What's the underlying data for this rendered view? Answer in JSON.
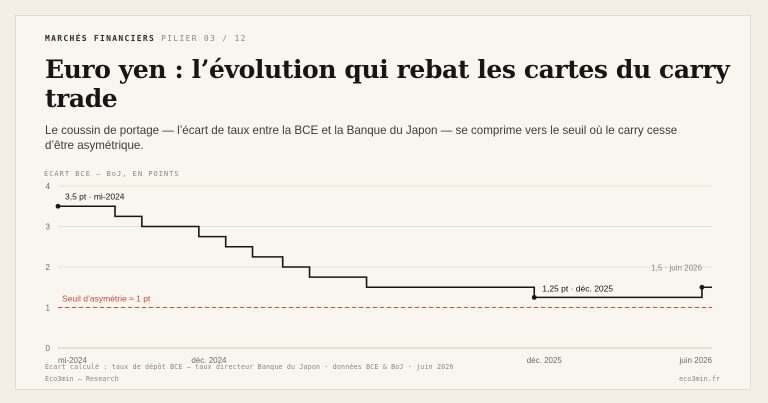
{
  "header": {
    "kicker": "MARCHÉS FINANCIERS",
    "section": "PILIER 03 / 12"
  },
  "title": "Euro yen : l’évolution qui rebat les cartes du carry trade",
  "subtitle": "Le coussin de portage — l’écart de taux entre la BCE et la Banque du Japon — se comprime vers le seuil où le carry cesse d’être asymétrique.",
  "chart_data": {
    "type": "line",
    "step": true,
    "ylabel": "ÉCART BCE – BoJ, EN POINTS",
    "ylim": [
      0,
      4
    ],
    "yticks": [
      0,
      1,
      2,
      3,
      4
    ],
    "xticks": [
      {
        "label": "mi-2024",
        "t": 2024.5
      },
      {
        "label": "déc. 2024",
        "t": 2024.95
      },
      {
        "label": "déc. 2025",
        "t": 2025.95
      },
      {
        "label": "juin 2026",
        "t": 2026.45
      }
    ],
    "series": [
      {
        "points": [
          {
            "t": 2024.5,
            "y": 3.5
          },
          {
            "t": 2024.67,
            "y": 3.25
          },
          {
            "t": 2024.75,
            "y": 3.0
          },
          {
            "t": 2024.92,
            "y": 2.75
          },
          {
            "t": 2025.0,
            "y": 2.5
          },
          {
            "t": 2025.08,
            "y": 2.25
          },
          {
            "t": 2025.17,
            "y": 2.0
          },
          {
            "t": 2025.25,
            "y": 1.75
          },
          {
            "t": 2025.42,
            "y": 1.5
          },
          {
            "t": 2025.92,
            "y": 1.25
          },
          {
            "t": 2026.42,
            "y": 1.5
          }
        ]
      }
    ],
    "reference": {
      "y": 1,
      "label": "Seuil d’asymétrie ≈ 1 pt",
      "color": "#c94a3c"
    },
    "annotations": [
      {
        "label": "3,5 pt · mi-2024",
        "t": 2024.5,
        "y": 3.5
      },
      {
        "label": "1,25 pt · déc. 2025",
        "t": 2025.92,
        "y": 1.25
      },
      {
        "label": "1,5 · juin 2026",
        "t": 2026.42,
        "y": 1.5
      }
    ],
    "line_color": "#161616",
    "grid": true
  },
  "footer": {
    "source": "Écart calculé : taux de dépôt BCE – taux directeur Banque du Japon · données BCE & BoJ · juin 2026",
    "brand": "Eco3min — Research",
    "site": "eco3min.fr"
  }
}
